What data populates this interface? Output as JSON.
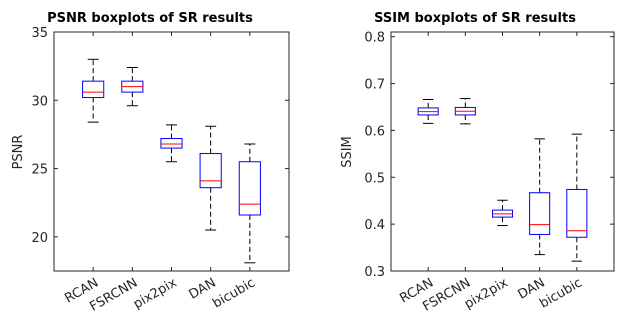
{
  "chart_data": [
    {
      "type": "boxplot",
      "title": "PSNR boxplots of SR results",
      "xlabel": "",
      "ylabel": "PSNR",
      "ylim": [
        17.5,
        35
      ],
      "yticks": [
        20,
        25,
        30,
        35
      ],
      "categories": [
        "RCAN",
        "FSRCNN",
        "pix2pix",
        "DAN",
        "bicubic"
      ],
      "boxes": [
        {
          "category": "RCAN",
          "whisker_low": 28.4,
          "q1": 30.2,
          "median": 30.6,
          "q3": 31.4,
          "whisker_high": 33.0
        },
        {
          "category": "FSRCNN",
          "whisker_low": 29.6,
          "q1": 30.6,
          "median": 31.0,
          "q3": 31.4,
          "whisker_high": 32.4
        },
        {
          "category": "pix2pix",
          "whisker_low": 25.5,
          "q1": 26.5,
          "median": 26.8,
          "q3": 27.2,
          "whisker_high": 28.2
        },
        {
          "category": "DAN",
          "whisker_low": 20.5,
          "q1": 23.6,
          "median": 24.1,
          "q3": 26.1,
          "whisker_high": 28.1
        },
        {
          "category": "bicubic",
          "whisker_low": 18.1,
          "q1": 21.6,
          "median": 22.4,
          "q3": 25.5,
          "whisker_high": 26.8
        }
      ],
      "grid": false,
      "box_color": "#0000ff",
      "median_color": "#ff0000",
      "whisker_color": "#000000"
    },
    {
      "type": "boxplot",
      "title": "SSIM boxplots of SR results",
      "xlabel": "",
      "ylabel": "SSIM",
      "ylim": [
        0.3,
        0.81
      ],
      "yticks": [
        0.3,
        0.4,
        0.5,
        0.6,
        0.7,
        0.8
      ],
      "categories": [
        "RCAN",
        "FSRCNN",
        "pix2pix",
        "DAN",
        "bicubic"
      ],
      "boxes": [
        {
          "category": "RCAN",
          "whisker_low": 0.615,
          "q1": 0.633,
          "median": 0.64,
          "q3": 0.648,
          "whisker_high": 0.666
        },
        {
          "category": "FSRCNN",
          "whisker_low": 0.614,
          "q1": 0.633,
          "median": 0.641,
          "q3": 0.649,
          "whisker_high": 0.668
        },
        {
          "category": "pix2pix",
          "whisker_low": 0.397,
          "q1": 0.415,
          "median": 0.422,
          "q3": 0.43,
          "whisker_high": 0.451
        },
        {
          "category": "DAN",
          "whisker_low": 0.335,
          "q1": 0.378,
          "median": 0.399,
          "q3": 0.467,
          "whisker_high": 0.582
        },
        {
          "category": "bicubic",
          "whisker_low": 0.321,
          "q1": 0.372,
          "median": 0.386,
          "q3": 0.474,
          "whisker_high": 0.592
        }
      ],
      "grid": false,
      "box_color": "#0000ff",
      "median_color": "#ff0000",
      "whisker_color": "#000000"
    }
  ]
}
